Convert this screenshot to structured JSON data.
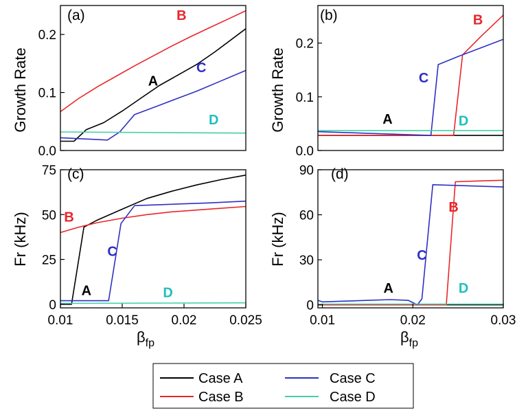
{
  "colors": {
    "A": "#000000",
    "B": "#e8262a",
    "C": "#2f2fc4",
    "D": "#3fd0a8",
    "D_label": "#1fbfbf"
  },
  "legend": [
    {
      "key": "A",
      "label": "Case A"
    },
    {
      "key": "B",
      "label": "Case B"
    },
    {
      "key": "C",
      "label": "Case C"
    },
    {
      "key": "D",
      "label": "Case D"
    }
  ],
  "chart_data": [
    {
      "panel": "(a)",
      "type": "line",
      "xlim": [
        0.01,
        0.025
      ],
      "ylim": [
        0,
        0.25
      ],
      "ylabel": "Growth Rate",
      "xlabel": "",
      "yticks": [
        {
          "v": 0.0,
          "t": "0.0"
        },
        {
          "v": 0.1,
          "t": "0.1"
        },
        {
          "v": 0.2,
          "t": "0.2"
        }
      ],
      "xticks": [],
      "series": [
        {
          "name": "A",
          "x": [
            0.01,
            0.0111,
            0.0121,
            0.0135,
            0.015,
            0.0165,
            0.018,
            0.0195,
            0.021,
            0.0225,
            0.025
          ],
          "y": [
            0.016,
            0.016,
            0.036,
            0.048,
            0.068,
            0.09,
            0.112,
            0.13,
            0.148,
            0.17,
            0.21
          ]
        },
        {
          "name": "B",
          "x": [
            0.01,
            0.0115,
            0.013,
            0.0145,
            0.016,
            0.0175,
            0.019,
            0.0205,
            0.022,
            0.0235,
            0.025
          ],
          "y": [
            0.067,
            0.09,
            0.11,
            0.128,
            0.146,
            0.163,
            0.18,
            0.196,
            0.211,
            0.226,
            0.241
          ]
        },
        {
          "name": "C",
          "x": [
            0.01,
            0.0138,
            0.0148,
            0.016,
            0.018,
            0.0195,
            0.021,
            0.023,
            0.025
          ],
          "y": [
            0.022,
            0.018,
            0.032,
            0.062,
            0.078,
            0.09,
            0.102,
            0.12,
            0.138
          ]
        },
        {
          "name": "D",
          "x": [
            0.01,
            0.025
          ],
          "y": [
            0.032,
            0.03
          ]
        }
      ],
      "labels": [
        {
          "key": "A",
          "text": "A",
          "x": 0.0175,
          "y": 0.112
        },
        {
          "key": "B",
          "text": "B",
          "x": 0.0198,
          "y": 0.225
        },
        {
          "key": "C",
          "text": "C",
          "x": 0.0214,
          "y": 0.135
        },
        {
          "key": "D_label",
          "text": "D",
          "x": 0.0224,
          "y": 0.045
        }
      ]
    },
    {
      "panel": "(b)",
      "type": "line",
      "xlim": [
        0.0095,
        0.03
      ],
      "ylim": [
        0,
        0.27
      ],
      "ylabel": "Growth Rate",
      "xlabel": "",
      "yticks": [
        {
          "v": 0.0,
          "t": "0.0"
        },
        {
          "v": 0.1,
          "t": "0.1"
        },
        {
          "v": 0.2,
          "t": "0.2"
        }
      ],
      "xticks": [],
      "series": [
        {
          "name": "A",
          "x": [
            0.0095,
            0.03
          ],
          "y": [
            0.028,
            0.028
          ]
        },
        {
          "name": "B",
          "x": [
            0.0095,
            0.0245,
            0.0255,
            0.0275,
            0.03
          ],
          "y": [
            0.028,
            0.028,
            0.178,
            0.212,
            0.252
          ]
        },
        {
          "name": "C",
          "x": [
            0.0095,
            0.022,
            0.0228,
            0.025,
            0.03
          ],
          "y": [
            0.035,
            0.028,
            0.16,
            0.175,
            0.207
          ]
        },
        {
          "name": "D",
          "x": [
            0.0095,
            0.03
          ],
          "y": [
            0.037,
            0.037
          ]
        }
      ],
      "labels": [
        {
          "key": "A",
          "text": "A",
          "x": 0.0172,
          "y": 0.05
        },
        {
          "key": "B",
          "text": "B",
          "x": 0.0272,
          "y": 0.235
        },
        {
          "key": "C",
          "text": "C",
          "x": 0.0212,
          "y": 0.127
        },
        {
          "key": "D_label",
          "text": "D",
          "x": 0.0256,
          "y": 0.047
        }
      ]
    },
    {
      "panel": "(c)",
      "type": "line",
      "xlim": [
        0.01,
        0.025
      ],
      "ylim": [
        -2,
        75
      ],
      "ylabel": "Fr (kHz)",
      "xlabel": "βfp",
      "yticks": [
        {
          "v": 0,
          "t": "0"
        },
        {
          "v": 25,
          "t": "25"
        },
        {
          "v": 50,
          "t": "50"
        },
        {
          "v": 75,
          "t": "75"
        }
      ],
      "xticks": [
        {
          "v": 0.01,
          "t": "0.01"
        },
        {
          "v": 0.015,
          "t": "0.015"
        },
        {
          "v": 0.02,
          "t": "0.02"
        },
        {
          "v": 0.025,
          "t": "0.025"
        }
      ],
      "series": [
        {
          "name": "A",
          "x": [
            0.01,
            0.0109,
            0.0119,
            0.013,
            0.015,
            0.017,
            0.019,
            0.021,
            0.023,
            0.025
          ],
          "y": [
            0,
            0,
            43,
            47,
            53,
            59,
            63,
            66.5,
            69.5,
            72
          ]
        },
        {
          "name": "B",
          "x": [
            0.01,
            0.0115,
            0.013,
            0.015,
            0.017,
            0.019,
            0.021,
            0.023,
            0.025
          ],
          "y": [
            40,
            43,
            45.5,
            48,
            50,
            51.5,
            52.5,
            53.5,
            54.5
          ]
        },
        {
          "name": "C",
          "x": [
            0.01,
            0.0139,
            0.0149,
            0.016,
            0.018,
            0.02,
            0.022,
            0.025
          ],
          "y": [
            2,
            2,
            45,
            55,
            55.5,
            56,
            56.5,
            57.5
          ]
        },
        {
          "name": "D",
          "x": [
            0.01,
            0.025
          ],
          "y": [
            0.5,
            0.8
          ]
        }
      ],
      "labels": [
        {
          "key": "A",
          "text": "A",
          "x": 0.0121,
          "y": 5
        },
        {
          "key": "B",
          "text": "B",
          "x": 0.0107,
          "y": 46
        },
        {
          "key": "C",
          "text": "C",
          "x": 0.0142,
          "y": 27
        },
        {
          "key": "D_label",
          "text": "D",
          "x": 0.0187,
          "y": 4
        }
      ]
    },
    {
      "panel": "(d)",
      "type": "line",
      "xlim": [
        0.0095,
        0.03
      ],
      "ylim": [
        -2,
        90
      ],
      "ylabel": "Fr (kHz)",
      "xlabel": "βfp",
      "yticks": [
        {
          "v": 0,
          "t": "0"
        },
        {
          "v": 30,
          "t": "30"
        },
        {
          "v": 60,
          "t": "60"
        },
        {
          "v": 90,
          "t": "90"
        }
      ],
      "xticks": [
        {
          "v": 0.01,
          "t": "0.01"
        },
        {
          "v": 0.02,
          "t": "0.02"
        },
        {
          "v": 0.03,
          "t": "0.03"
        }
      ],
      "series": [
        {
          "name": "A",
          "x": [
            0.0095,
            0.03
          ],
          "y": [
            0,
            0
          ]
        },
        {
          "name": "B",
          "x": [
            0.0095,
            0.0237,
            0.0247,
            0.027,
            0.03
          ],
          "y": [
            0,
            0,
            82,
            82.5,
            83
          ]
        },
        {
          "name": "C",
          "x": [
            0.0095,
            0.01,
            0.015,
            0.0175,
            0.0195,
            0.0205,
            0.021,
            0.0222,
            0.025,
            0.03
          ],
          "y": [
            3,
            2,
            3,
            3.5,
            3,
            0,
            4,
            80,
            79.5,
            78.5
          ]
        },
        {
          "name": "D",
          "x": [
            0.0095,
            0.03
          ],
          "y": [
            0.5,
            0.5
          ]
        }
      ],
      "labels": [
        {
          "key": "A",
          "text": "A",
          "x": 0.0173,
          "y": 8
        },
        {
          "key": "B",
          "text": "B",
          "x": 0.0245,
          "y": 62
        },
        {
          "key": "C",
          "text": "C",
          "x": 0.021,
          "y": 30
        },
        {
          "key": "D_label",
          "text": "D",
          "x": 0.0256,
          "y": 8
        }
      ]
    }
  ]
}
